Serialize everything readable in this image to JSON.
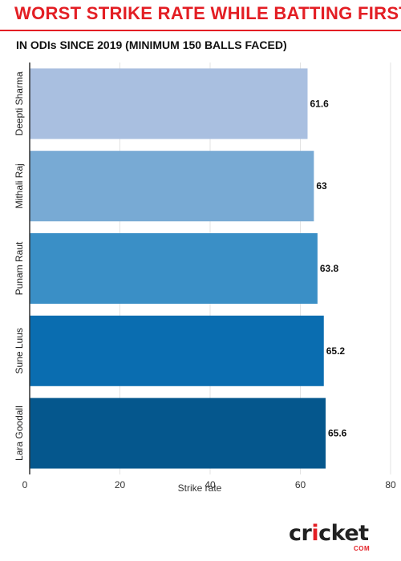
{
  "title": "WORST STRIKE RATE WHILE BATTING FIRST",
  "subtitle": "IN ODIs SINCE 2019 (MINIMUM 150 BALLS FACED)",
  "logo": {
    "prefix": "cr",
    "i": "i",
    "suffix": "cket",
    "sub": "COM"
  },
  "chart_data": {
    "type": "bar",
    "orientation": "horizontal",
    "categories": [
      "Deepti Sharma",
      "Mithali Raj",
      "Punam Raut",
      "Sune Luus",
      "Lara Goodall"
    ],
    "values": [
      61.6,
      63,
      63.8,
      65.2,
      65.6
    ],
    "value_labels": [
      "61.6",
      "63",
      "63.8",
      "65.2",
      "65.6"
    ],
    "colors": [
      "#a9bfe0",
      "#78aad4",
      "#3a8fc6",
      "#0a6db0",
      "#05578d"
    ],
    "xlabel": "Strike rate",
    "xticks": [
      "0",
      "20",
      "40",
      "60",
      "80"
    ],
    "xlim": [
      0,
      80
    ],
    "grid": true
  }
}
